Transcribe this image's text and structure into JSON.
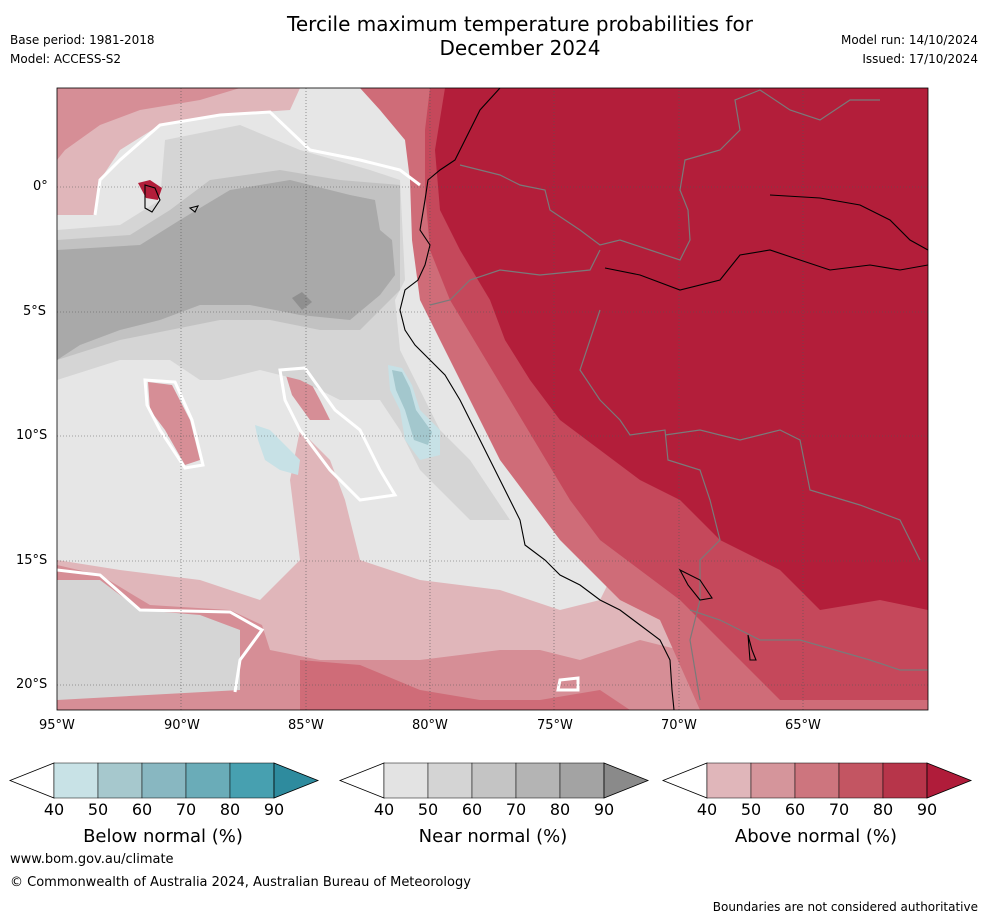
{
  "header": {
    "title_line1": "Tercile maximum temperature probabilities for",
    "title_line2": "December 2024",
    "base_period": "Base period: 1981-2018",
    "model": "Model: ACCESS-S2",
    "model_run": "Model run: 14/10/2024",
    "issued": "Issued: 17/10/2024"
  },
  "map": {
    "lon_ticks": [
      "95°W",
      "90°W",
      "85°W",
      "80°W",
      "75°W",
      "70°W",
      "65°W"
    ],
    "lat_ticks": [
      "0°",
      "5°S",
      "10°S",
      "15°S",
      "20°S"
    ],
    "colors": {
      "above_90": "#b31e3a",
      "above_80": "#c5485b",
      "above_70": "#cf6c78",
      "above_60": "#d68e96",
      "above_50": "#e0b6ba",
      "near_70": "#a9a9a9",
      "near_60": "#c2c2c2",
      "near_50": "#d5d5d5",
      "near_40": "#e6e6e6",
      "below_50": "#c7e1e6",
      "below_60": "#a3c7cd"
    }
  },
  "colorbars": [
    {
      "label": "Below normal (%)",
      "ticks": [
        "40",
        "50",
        "60",
        "70",
        "80",
        "90"
      ],
      "colors": [
        "#c8e2e6",
        "#a6c8cd",
        "#88b7c1",
        "#6aacb8",
        "#47a0b0"
      ],
      "cap_low": "#ffffff",
      "cap_high": "#2e8b9e"
    },
    {
      "label": "Near normal (%)",
      "ticks": [
        "40",
        "50",
        "60",
        "70",
        "80",
        "90"
      ],
      "colors": [
        "#e3e3e3",
        "#d4d4d4",
        "#c4c4c4",
        "#b4b4b4",
        "#a3a3a3"
      ],
      "cap_low": "#ffffff",
      "cap_high": "#8a8a8a"
    },
    {
      "label": "Above normal (%)",
      "ticks": [
        "40",
        "50",
        "60",
        "70",
        "80",
        "90"
      ],
      "colors": [
        "#e0b6ba",
        "#d5959b",
        "#cd757e",
        "#c35562",
        "#b7354a"
      ],
      "cap_low": "#ffffff",
      "cap_high": "#b01c3a"
    }
  ],
  "footer": {
    "website": "www.bom.gov.au/climate",
    "copyright": "© Commonwealth of Australia 2024, Australian Bureau of Meteorology",
    "disclaimer": "Boundaries are not considered authoritative"
  }
}
